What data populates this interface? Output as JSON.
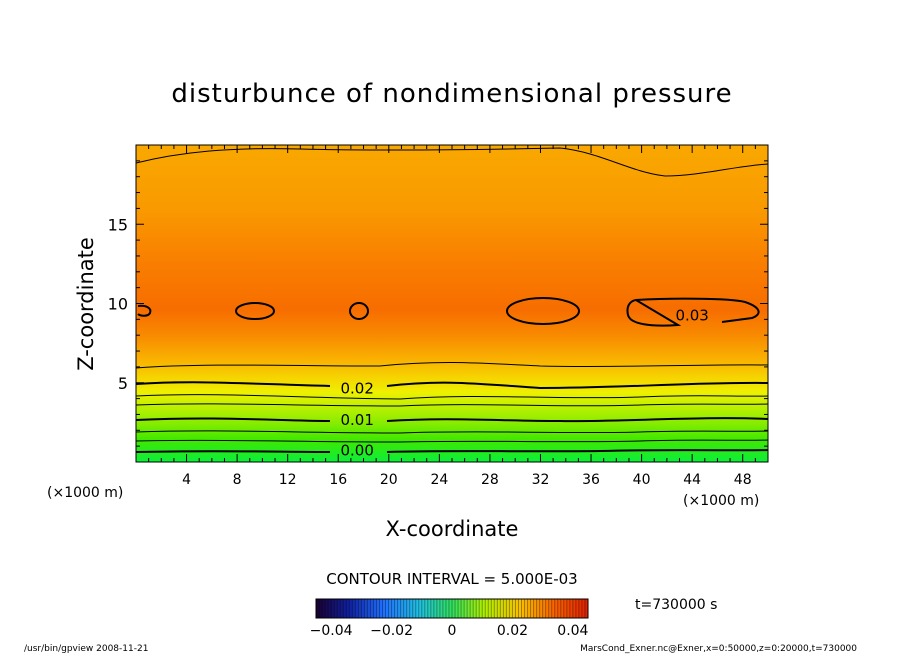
{
  "chart_data": {
    "type": "contour",
    "title": "disturbunce of nondimensional pressure",
    "xlabel": "X-coordinate",
    "ylabel": "Z-coordinate",
    "x_unit_note": "(×1000 m)",
    "y_unit_note": "(×1000 m)",
    "xlim": [
      0,
      50
    ],
    "ylim": [
      0,
      20
    ],
    "x_ticks": [
      4,
      8,
      12,
      16,
      20,
      24,
      28,
      32,
      36,
      40,
      44,
      48
    ],
    "y_ticks": [
      5,
      10,
      15
    ],
    "contour_labels": [
      {
        "text": "0.03",
        "x": 44,
        "y": 9.3
      },
      {
        "text": "0.02",
        "x": 17.5,
        "y": 4.7
      },
      {
        "text": "0.01",
        "x": 17.5,
        "y": 2.7
      },
      {
        "text": "0.00",
        "x": 17.5,
        "y": 0.8
      }
    ],
    "contour_interval": "CONTOUR INTERVAL = 5.000E-03",
    "colorbar_ticks": [
      "−0.04",
      "−0.02",
      "0",
      "0.02",
      "0.04"
    ],
    "colorbar_range": [
      -0.045,
      0.045
    ],
    "time_label": "t=730000 s"
  },
  "footer": {
    "left": "/usr/bin/gpview  2008-11-21",
    "right": "MarsCond_Exner.nc@Exner,x=0:50000,z=0:20000,t=730000"
  }
}
